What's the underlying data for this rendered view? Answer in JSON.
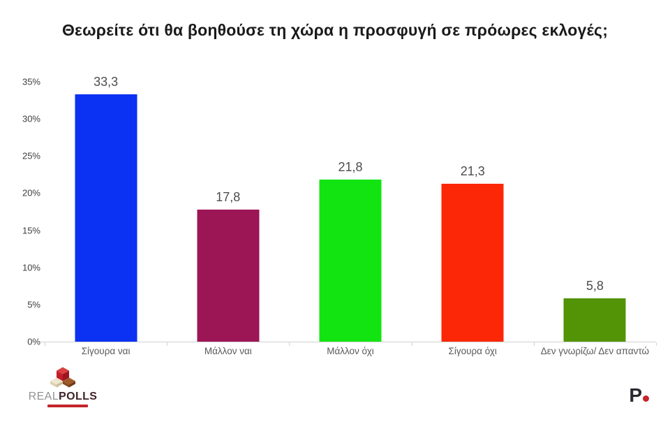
{
  "chart_data": {
    "type": "bar",
    "title": "Θεωρείτε ότι θα βοηθούσε τη χώρα η προσφυγή σε πρόωρες εκλογές;",
    "categories": [
      "Σίγουρα ναι",
      "Μάλλον ναι",
      "Μάλλον όχι",
      "Σίγουρα όχι",
      "Δεν γνωρίζω/ Δεν απαντώ"
    ],
    "values": [
      33.3,
      17.8,
      21.8,
      21.3,
      5.8
    ],
    "value_labels": [
      "33,3",
      "17,8",
      "21,8",
      "21,3",
      "5,8"
    ],
    "bar_colors": [
      "#0b32f2",
      "#9c1655",
      "#12e412",
      "#fb2706",
      "#529405"
    ],
    "xlabel": "",
    "ylabel": "",
    "ylim": [
      0,
      35
    ],
    "ytick_labels": [
      "35%",
      "30%",
      "25%",
      "20%",
      "15%",
      "10%",
      "5%",
      "0%"
    ],
    "grid": false,
    "legend": false,
    "axis_color": "#d2d2d2",
    "value_label_color": "#4d4d4d",
    "tick_label_color": "#404040"
  },
  "footer": {
    "realpolls": {
      "text_light": "REAL",
      "text_bold": "POLLS",
      "tagline_color": "#c4252b",
      "cube_colors": {
        "red_top": "#d94040",
        "red_left": "#c21f2a",
        "red_right": "#9e1520",
        "cream_top": "#efe6cf",
        "cream_left": "#ddd0b0",
        "cream_right": "#cdbd9a",
        "brown_top": "#a05a28",
        "brown_left": "#8a4a20",
        "brown_right": "#703a16"
      }
    },
    "publisher": {
      "letter": "P",
      "dot_color": "#c4252b"
    }
  }
}
